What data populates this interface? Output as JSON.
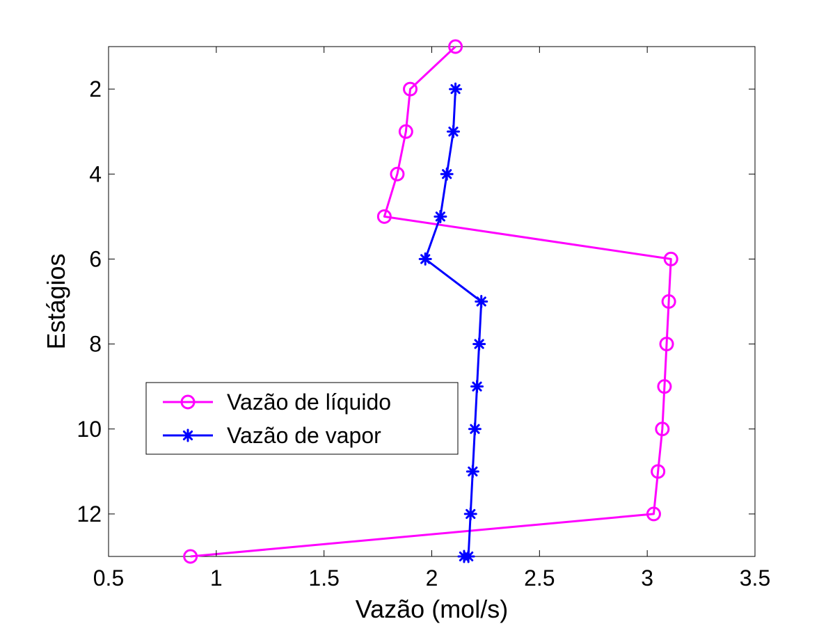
{
  "chart_data": {
    "type": "line",
    "title": "",
    "xlabel": "Vazão (mol/s)",
    "ylabel": "Estágios",
    "xlim": [
      0.5,
      3.5
    ],
    "ylim": [
      1,
      13
    ],
    "y_reversed": true,
    "x_ticks": [
      0.5,
      1,
      1.5,
      2,
      2.5,
      3,
      3.5
    ],
    "x_tick_labels": [
      "0.5",
      "1",
      "1.5",
      "2",
      "2.5",
      "3",
      "3.5"
    ],
    "y_ticks": [
      2,
      4,
      6,
      8,
      10,
      12
    ],
    "y_tick_labels": [
      "2",
      "4",
      "6",
      "8",
      "10",
      "12"
    ],
    "grid": false,
    "legend_position": "lower-left",
    "series": [
      {
        "name": "Vazão de líquido",
        "color": "#ff00ff",
        "marker": "circle",
        "x": [
          2.11,
          1.9,
          1.88,
          1.84,
          1.78,
          3.11,
          3.1,
          3.09,
          3.08,
          3.07,
          3.05,
          3.03,
          0.88
        ],
        "y": [
          1,
          2,
          3,
          4,
          5,
          6,
          7,
          8,
          9,
          10,
          11,
          12,
          13
        ]
      },
      {
        "name": "Vazão de vapor",
        "color": "#0000ff",
        "marker": "asterisk",
        "x": [
          2.11,
          2.1,
          2.07,
          2.04,
          1.97,
          2.23,
          2.22,
          2.21,
          2.2,
          2.19,
          2.18,
          2.17,
          2.15
        ],
        "y": [
          2,
          3,
          4,
          5,
          6,
          7,
          8,
          9,
          10,
          11,
          12,
          13,
          13
        ]
      }
    ]
  }
}
